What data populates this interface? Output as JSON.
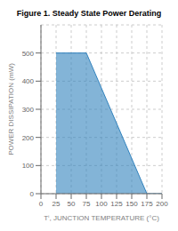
{
  "chart_data": {
    "type": "area",
    "title": "Figure 1. Steady State Power Derating",
    "x": [
      25,
      75,
      175,
      200
    ],
    "values": [
      500,
      500,
      0,
      0
    ],
    "xlabel": "Tⁱ, JUNCTION TEMPERATURE (°C)",
    "ylabel": "POWER DISSIPATION (mW)",
    "xlim": [
      0,
      200
    ],
    "ylim": [
      0,
      600
    ],
    "xticks": [
      0,
      25,
      50,
      75,
      100,
      125,
      150,
      175,
      200
    ],
    "yticks": [
      0,
      100,
      200,
      300,
      400,
      500
    ],
    "grid": true
  }
}
